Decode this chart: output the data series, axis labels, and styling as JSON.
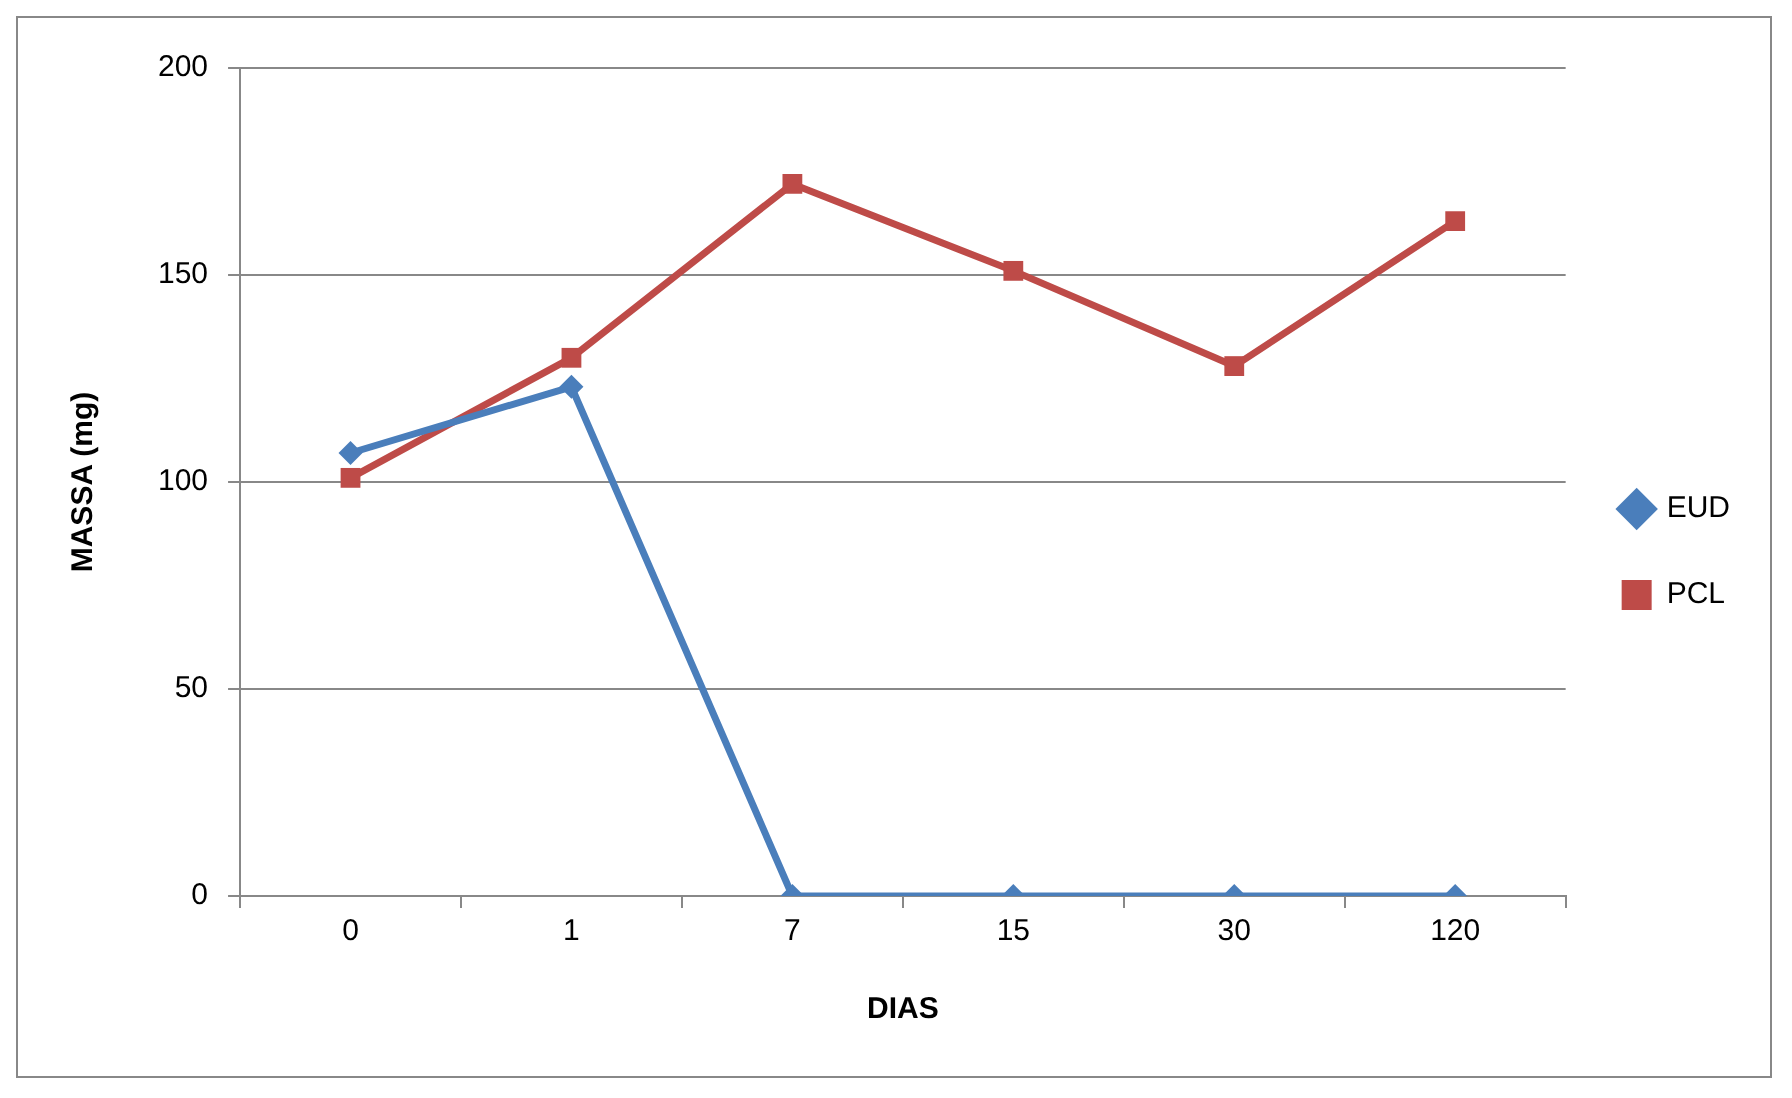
{
  "chart_data": {
    "type": "line",
    "xlabel": "DIAS",
    "ylabel": "MASSA (mg)",
    "categories": [
      "0",
      "1",
      "7",
      "15",
      "30",
      "120"
    ],
    "series": [
      {
        "name": "EUD",
        "color": "#4a7ebb",
        "marker": "diamond",
        "values": [
          107,
          123,
          0,
          0,
          0,
          0
        ]
      },
      {
        "name": "PCL",
        "color": "#be4b48",
        "marker": "square",
        "values": [
          101,
          130,
          172,
          151,
          128,
          163
        ]
      }
    ],
    "ylim": [
      0,
      200
    ],
    "yticks": [
      0,
      50,
      100,
      150,
      200
    ],
    "grid": "y",
    "legend": "right",
    "line_style": "solid"
  }
}
